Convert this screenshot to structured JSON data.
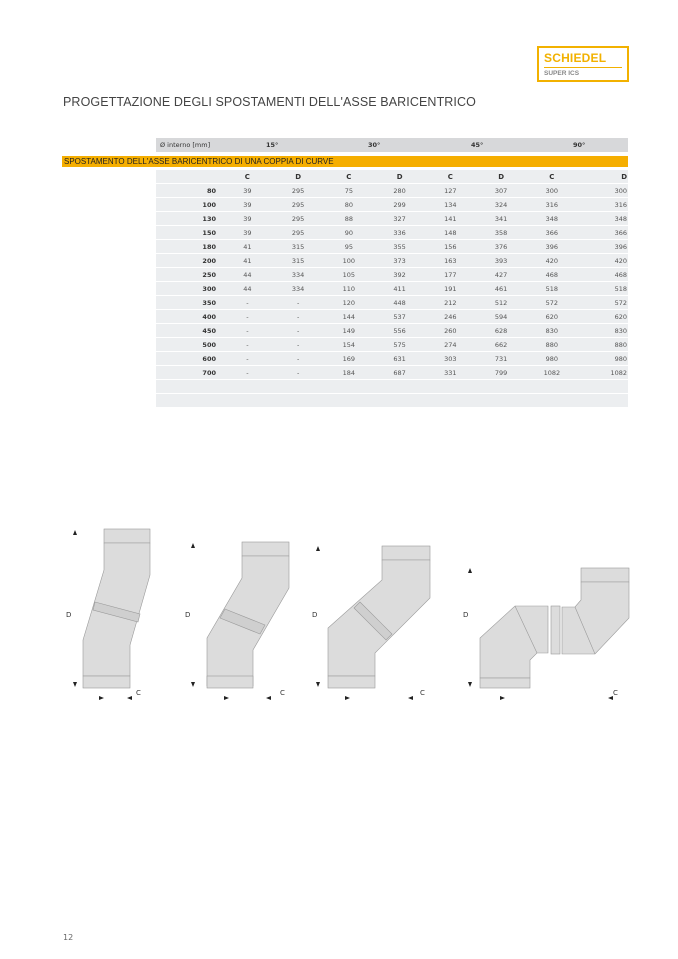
{
  "logo": {
    "brand": "SCHIEDEL",
    "product": "SUPER ICS",
    "color": "#f2b100"
  },
  "title": "PROGETTAZIONE DEGLI SPOSTAMENTI DELL'ASSE BARICENTRICO",
  "table": {
    "header_label": "Ø interno [mm]",
    "angles": [
      "15°",
      "30°",
      "45°",
      "90°"
    ],
    "section_title": "SPOSTAMENTO DELL'ASSE BARICENTRICO DI UNA COPPIA DI CURVE",
    "section_color": "#f5ae00",
    "subheaders": [
      "C",
      "D",
      "C",
      "D",
      "C",
      "D",
      "C",
      "D"
    ],
    "rows": [
      {
        "d": "80",
        "v": [
          "39",
          "295",
          "75",
          "280",
          "127",
          "307",
          "300",
          "300"
        ]
      },
      {
        "d": "100",
        "v": [
          "39",
          "295",
          "80",
          "299",
          "134",
          "324",
          "316",
          "316"
        ]
      },
      {
        "d": "130",
        "v": [
          "39",
          "295",
          "88",
          "327",
          "141",
          "341",
          "348",
          "348"
        ]
      },
      {
        "d": "150",
        "v": [
          "39",
          "295",
          "90",
          "336",
          "148",
          "358",
          "366",
          "366"
        ]
      },
      {
        "d": "180",
        "v": [
          "41",
          "315",
          "95",
          "355",
          "156",
          "376",
          "396",
          "396"
        ]
      },
      {
        "d": "200",
        "v": [
          "41",
          "315",
          "100",
          "373",
          "163",
          "393",
          "420",
          "420"
        ]
      },
      {
        "d": "250",
        "v": [
          "44",
          "334",
          "105",
          "392",
          "177",
          "427",
          "468",
          "468"
        ]
      },
      {
        "d": "300",
        "v": [
          "44",
          "334",
          "110",
          "411",
          "191",
          "461",
          "518",
          "518"
        ]
      },
      {
        "d": "350",
        "v": [
          "-",
          "-",
          "120",
          "448",
          "212",
          "512",
          "572",
          "572"
        ]
      },
      {
        "d": "400",
        "v": [
          "-",
          "-",
          "144",
          "537",
          "246",
          "594",
          "620",
          "620"
        ]
      },
      {
        "d": "450",
        "v": [
          "-",
          "-",
          "149",
          "556",
          "260",
          "628",
          "830",
          "830"
        ]
      },
      {
        "d": "500",
        "v": [
          "-",
          "-",
          "154",
          "575",
          "274",
          "662",
          "880",
          "880"
        ]
      },
      {
        "d": "600",
        "v": [
          "-",
          "-",
          "169",
          "631",
          "303",
          "731",
          "980",
          "980"
        ]
      },
      {
        "d": "700",
        "v": [
          "-",
          "-",
          "184",
          "687",
          "331",
          "799",
          "1082",
          "1082"
        ]
      }
    ]
  },
  "diagrams": {
    "d_label": "D",
    "c_label": "C"
  },
  "page_number": "12"
}
